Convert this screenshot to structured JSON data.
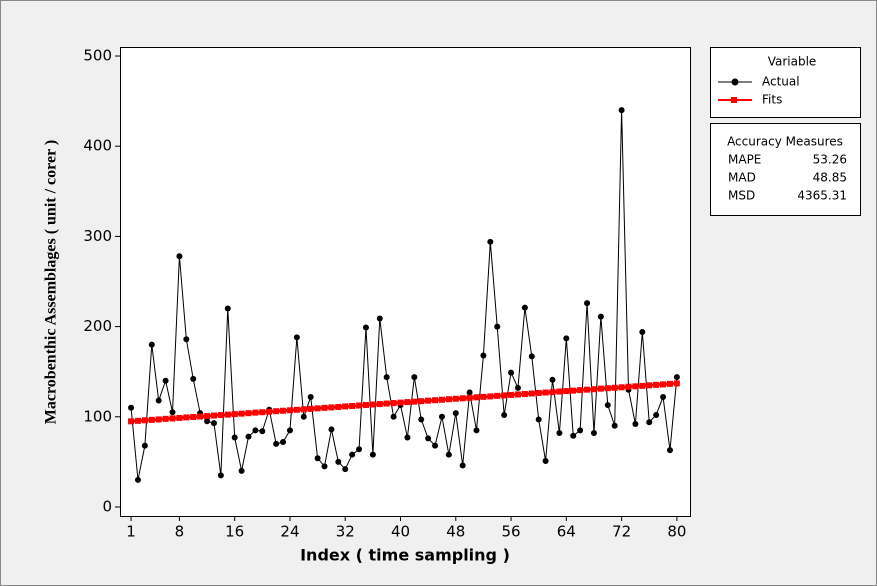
{
  "chart_data": {
    "type": "line",
    "xlabel": "Index ( time sampling )",
    "ylabel": "Macrobenthic Assemblages ( unit / corer )",
    "x": [
      1,
      2,
      3,
      4,
      5,
      6,
      7,
      8,
      9,
      10,
      11,
      12,
      13,
      14,
      15,
      16,
      17,
      18,
      19,
      20,
      21,
      22,
      23,
      24,
      25,
      26,
      27,
      28,
      29,
      30,
      31,
      32,
      33,
      34,
      35,
      36,
      37,
      38,
      39,
      40,
      41,
      42,
      43,
      44,
      45,
      46,
      47,
      48,
      49,
      50,
      51,
      52,
      53,
      54,
      55,
      56,
      57,
      58,
      59,
      60,
      61,
      62,
      63,
      64,
      65,
      66,
      67,
      68,
      69,
      70,
      71,
      72,
      73,
      74,
      75,
      76,
      77,
      78,
      79,
      80
    ],
    "series": [
      {
        "name": "Actual",
        "color": "#000000",
        "marker": "circle",
        "values": [
          110,
          30,
          68,
          180,
          118,
          140,
          105,
          278,
          186,
          142,
          104,
          95,
          93,
          35,
          220,
          77,
          40,
          78,
          85,
          84,
          108,
          70,
          72,
          85,
          188,
          100,
          122,
          54,
          45,
          86,
          50,
          42,
          58,
          64,
          199,
          58,
          209,
          144,
          100,
          113,
          77,
          144,
          97,
          76,
          68,
          100,
          58,
          104,
          46,
          127,
          85,
          168,
          294,
          200,
          102,
          149,
          132,
          221,
          167,
          97,
          51,
          141,
          82,
          187,
          79,
          85,
          226,
          82,
          211,
          113,
          90,
          440,
          130,
          92,
          194,
          94,
          102,
          122,
          63,
          144
        ]
      },
      {
        "name": "Fits",
        "color": "#ff0000",
        "marker": "square",
        "values": [
          95.0,
          95.5,
          96.1,
          96.6,
          97.1,
          97.7,
          98.2,
          98.7,
          99.3,
          99.8,
          100.3,
          100.8,
          101.4,
          101.9,
          102.4,
          103.0,
          103.5,
          104.0,
          104.6,
          105.1,
          105.6,
          106.2,
          106.7,
          107.2,
          107.8,
          108.3,
          108.8,
          109.4,
          109.9,
          110.4,
          110.9,
          111.5,
          112.0,
          112.5,
          113.1,
          113.6,
          114.1,
          114.7,
          115.2,
          115.7,
          116.3,
          116.8,
          117.3,
          117.9,
          118.4,
          118.9,
          119.5,
          120.0,
          120.5,
          121.0,
          121.6,
          122.1,
          122.6,
          123.2,
          123.7,
          124.2,
          124.8,
          125.3,
          125.8,
          126.4,
          126.9,
          127.4,
          128.0,
          128.5,
          129.0,
          129.6,
          130.1,
          130.6,
          131.2,
          131.7,
          132.2,
          132.7,
          133.3,
          133.8,
          134.3,
          134.9,
          135.4,
          135.9,
          136.5,
          137.0
        ]
      }
    ],
    "xlim": [
      -0.6,
      81.9
    ],
    "ylim": [
      -10,
      510
    ],
    "xticks": [
      1,
      8,
      16,
      24,
      32,
      40,
      48,
      56,
      64,
      72,
      80
    ],
    "yticks": [
      0,
      100,
      200,
      300,
      400,
      500
    ],
    "legend_title": "Variable",
    "accuracy": {
      "title": "Accuracy Measures",
      "rows": [
        [
          "MAPE",
          53.26
        ],
        [
          "MAD",
          48.85
        ],
        [
          "MSD",
          4365.31
        ]
      ]
    }
  }
}
